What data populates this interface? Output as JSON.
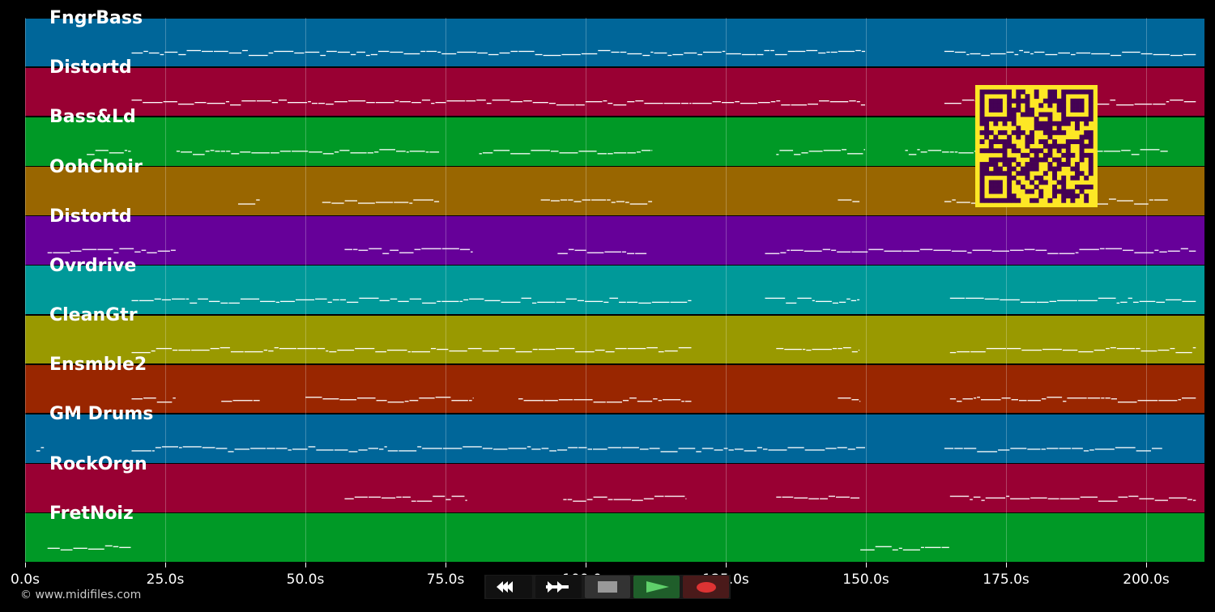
{
  "tracks": [
    {
      "name": "FngrBass",
      "color": "#006699",
      "segments": [
        [
          19,
          150
        ],
        [
          164,
          209
        ]
      ]
    },
    {
      "name": "Distortd",
      "color": "#990033",
      "segments": [
        [
          19,
          119
        ],
        [
          119,
          134
        ],
        [
          134,
          150
        ],
        [
          164,
          209
        ]
      ]
    },
    {
      "name": "Bass&Ld",
      "color": "#009926",
      "segments": [
        [
          11,
          19
        ],
        [
          27,
          74
        ],
        [
          81,
          112
        ],
        [
          134,
          150
        ],
        [
          157,
          204
        ]
      ]
    },
    {
      "name": "OohChoir",
      "color": "#996600",
      "segments": [
        [
          38,
          42
        ],
        [
          53,
          74
        ],
        [
          92,
          112
        ],
        [
          145,
          149
        ],
        [
          164,
          204
        ]
      ]
    },
    {
      "name": "Distortd",
      "color": "#660099",
      "segments": [
        [
          4,
          27
        ],
        [
          57,
          80
        ],
        [
          95,
          111
        ],
        [
          132,
          209
        ]
      ]
    },
    {
      "name": "Ovrdrive",
      "color": "#009999",
      "segments": [
        [
          19,
          119
        ],
        [
          132,
          149
        ],
        [
          165,
          209
        ]
      ]
    },
    {
      "name": "CleanGtr",
      "color": "#999900",
      "segments": [
        [
          19,
          119
        ],
        [
          134,
          149
        ],
        [
          165,
          209
        ]
      ]
    },
    {
      "name": "Ensmble2",
      "color": "#992600",
      "segments": [
        [
          19,
          27
        ],
        [
          35,
          42
        ],
        [
          50,
          80
        ],
        [
          88,
          119
        ],
        [
          145,
          149
        ],
        [
          165,
          209
        ]
      ]
    },
    {
      "name": "GM Drums",
      "color": "#006699",
      "segments": [
        [
          2,
          3.5
        ],
        [
          19,
          150
        ],
        [
          164,
          203
        ]
      ]
    },
    {
      "name": "RockOrgn",
      "color": "#990033",
      "segments": [
        [
          57,
          79
        ],
        [
          96,
          118
        ],
        [
          134,
          149
        ],
        [
          165,
          209
        ]
      ]
    },
    {
      "name": "FretNoiz",
      "color": "#009926",
      "segments": [
        [
          4,
          19
        ],
        [
          149,
          165
        ]
      ]
    }
  ],
  "axis": {
    "max_seconds": 210.4,
    "ticks": [
      "0.0s",
      "25.0s",
      "50.0s",
      "75.0s",
      "100.0s",
      "125.0s",
      "150.0s",
      "175.0s",
      "200.0s"
    ],
    "tick_values": [
      0,
      25,
      50,
      75,
      100,
      125,
      150,
      175,
      200
    ]
  },
  "copyright": "© www.midifiles.com",
  "controls": {
    "rewind_icon": "rewind-icon",
    "forward_icon": "fast-forward-icon",
    "stop_icon": "stop-icon",
    "play_icon": "play-icon",
    "record_icon": "record-icon"
  }
}
